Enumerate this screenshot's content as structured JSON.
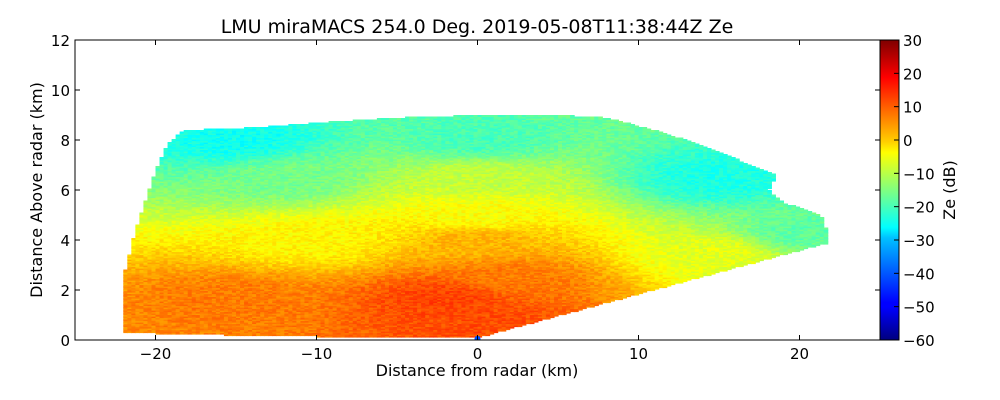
{
  "chart_data": {
    "type": "heatmap",
    "title": "LMU miraMACS 254.0 Deg. 2019-05-08T11:38:44Z  Ze",
    "xlabel": "Distance from radar (km)",
    "ylabel": "Distance Above radar  (km)",
    "xlim": [
      -25,
      25
    ],
    "ylim": [
      0,
      12
    ],
    "xticks": [
      -20,
      -10,
      0,
      10,
      20
    ],
    "yticks": [
      0,
      2,
      4,
      6,
      8,
      10,
      12
    ],
    "grid": false,
    "colorbar": {
      "label": "Ze (dB)",
      "range": [
        -60,
        30
      ],
      "ticks": [
        -60,
        -50,
        -40,
        -30,
        -20,
        -10,
        0,
        10,
        20,
        30
      ],
      "colormap": "jet"
    },
    "description_points_ze_db": [
      {
        "x": 0,
        "y": 0.8,
        "ze": 12
      },
      {
        "x": -2,
        "y": 1.7,
        "ze": 13
      },
      {
        "x": -15,
        "y": 1.6,
        "ze": 8
      },
      {
        "x": 2,
        "y": 2.5,
        "ze": 8
      },
      {
        "x": 0,
        "y": 4.0,
        "ze": 3
      },
      {
        "x": -10,
        "y": 4.0,
        "ze": -3
      },
      {
        "x": 15,
        "y": 3.5,
        "ze": -6
      },
      {
        "x": 0,
        "y": 5.0,
        "ze": -4
      },
      {
        "x": 0,
        "y": 6.5,
        "ze": -9
      },
      {
        "x": -12,
        "y": 6.5,
        "ze": -16
      },
      {
        "x": 0,
        "y": 8.0,
        "ze": -20
      },
      {
        "x": -15,
        "y": 8.0,
        "ze": -25
      },
      {
        "x": 15,
        "y": 6.5,
        "ze": -24
      },
      {
        "x": 20,
        "y": 4.3,
        "ze": -18
      }
    ],
    "echo_boundary_km": [
      [
        -22.1,
        0.3
      ],
      [
        -22.0,
        2.5
      ],
      [
        -21.2,
        4.5
      ],
      [
        -20.0,
        6.8
      ],
      [
        -19.3,
        7.8
      ],
      [
        -18.3,
        8.4
      ],
      [
        -14,
        8.5
      ],
      [
        -10,
        8.7
      ],
      [
        -5,
        8.9
      ],
      [
        0,
        9.0
      ],
      [
        5,
        9.0
      ],
      [
        8,
        8.9
      ],
      [
        11,
        8.4
      ],
      [
        14,
        7.8
      ],
      [
        17,
        7.0
      ],
      [
        18.6,
        6.6
      ],
      [
        18.1,
        6.0
      ],
      [
        19.0,
        5.5
      ],
      [
        20.5,
        5.2
      ],
      [
        21.5,
        4.9
      ],
      [
        21.8,
        3.9
      ],
      [
        0,
        0.1
      ],
      [
        -5,
        0.1
      ],
      [
        -15,
        0.2
      ],
      [
        -22.1,
        0.3
      ]
    ]
  }
}
